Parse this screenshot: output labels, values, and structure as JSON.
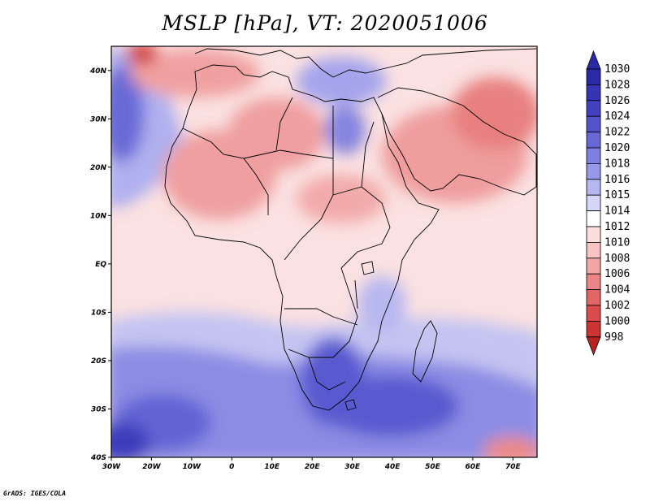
{
  "title": "MSLP [hPa], VT: 2020051006",
  "credit": "GrADS: IGES/COLA",
  "map": {
    "lon_range": [
      -30,
      76
    ],
    "lat_range": [
      -40,
      45
    ],
    "lon_ticks": [
      "30W",
      "20W",
      "10W",
      "0",
      "10E",
      "20E",
      "30E",
      "40E",
      "50E",
      "60E",
      "70E"
    ],
    "lat_ticks": [
      "40N",
      "30N",
      "20N",
      "10N",
      "EQ",
      "10S",
      "20S",
      "30S",
      "40S"
    ]
  },
  "colorbar": {
    "levels": [
      "1030",
      "1028",
      "1026",
      "1024",
      "1022",
      "1020",
      "1018",
      "1016",
      "1015",
      "1014",
      "1012",
      "1010",
      "1008",
      "1006",
      "1004",
      "1002",
      "1000",
      "998"
    ],
    "colors": [
      "#2a2aa6",
      "#3434b4",
      "#4141c2",
      "#5353cc",
      "#6767d6",
      "#7e7edf",
      "#9898e8",
      "#b6b6f1",
      "#d6d6f8",
      "#ffffff",
      "#fbdede",
      "#f7c3c3",
      "#f1a5a5",
      "#ea8585",
      "#e26666",
      "#da4b4b",
      "#cc3434",
      "#b82222"
    ]
  }
}
